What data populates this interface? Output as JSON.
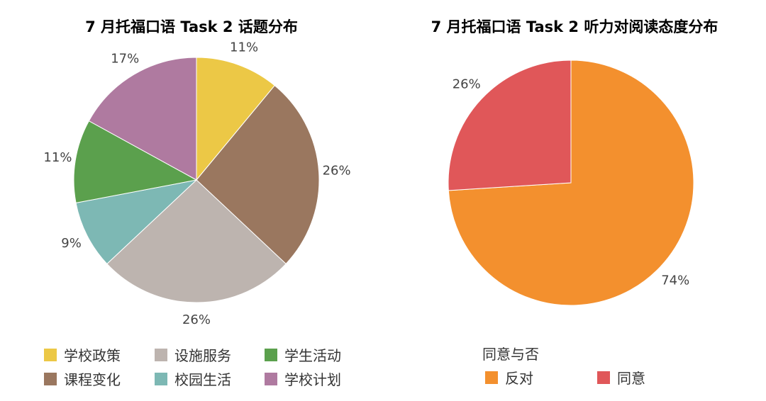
{
  "chart_data": [
    {
      "type": "pie",
      "title": "7 月托福口语 Task 2 话题分布",
      "slices": [
        {
          "label": "学校政策",
          "value": 11,
          "display": "11%",
          "color": "#ECC846"
        },
        {
          "label": "课程变化",
          "value": 26,
          "display": "26%",
          "color": "#9A775F"
        },
        {
          "label": "设施服务",
          "value": 26,
          "display": "26%",
          "color": "#BDB4AF"
        },
        {
          "label": "校园生活",
          "value": 9,
          "display": "9%",
          "color": "#7DB8B4"
        },
        {
          "label": "学生活动",
          "value": 11,
          "display": "11%",
          "color": "#5BA04D"
        },
        {
          "label": "学校计划",
          "value": 17,
          "display": "17%",
          "color": "#AF7AA0"
        }
      ],
      "legend_order": [
        "学校政策",
        "设施服务",
        "学生活动",
        "课程变化",
        "校园生活",
        "学校计划"
      ],
      "legend_placement": "bottom"
    },
    {
      "type": "pie",
      "title": "7 月托福口语 Task 2 听力对阅读态度分布",
      "slices": [
        {
          "label": "反对",
          "value": 74,
          "display": "74%",
          "color": "#F3902E"
        },
        {
          "label": "同意",
          "value": 26,
          "display": "26%",
          "color": "#E05759"
        }
      ],
      "legend_title": "同意与否",
      "legend_order": [
        "反对",
        "同意"
      ],
      "legend_placement": "bottom"
    }
  ]
}
